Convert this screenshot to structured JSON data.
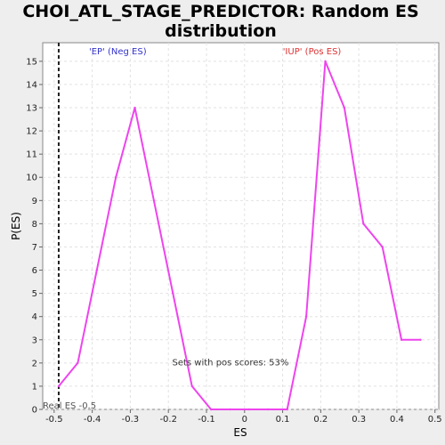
{
  "chart_data": {
    "type": "line",
    "title": "CHOI_ATL_STAGE_PREDICTOR: Random ES distribution",
    "title_lines": [
      "CHOI_ATL_STAGE_PREDICTOR: Random ES",
      "distribution"
    ],
    "xlabel": "ES",
    "ylabel": "P(ES)",
    "xlim": [
      -0.53,
      0.51
    ],
    "ylim": [
      0,
      15.8
    ],
    "x_ticks": [
      -0.5,
      -0.4,
      -0.3,
      -0.2,
      -0.1,
      0.0,
      0.1,
      0.2,
      0.3,
      0.4,
      0.5
    ],
    "x_tick_labels": [
      "-0.5",
      "-0.4",
      "-0.3",
      "-0.2",
      "-0.1",
      "0",
      "0.1",
      "0.2",
      "0.3",
      "0.4",
      "0.5"
    ],
    "y_ticks": [
      0,
      1,
      2,
      3,
      4,
      5,
      6,
      7,
      8,
      9,
      10,
      11,
      12,
      13,
      14,
      15
    ],
    "y_tick_labels": [
      "0",
      "1",
      "2",
      "3",
      "4",
      "5",
      "6",
      "7",
      "8",
      "9",
      "10",
      "11",
      "12",
      "13",
      "14",
      "15"
    ],
    "grid": true,
    "series": [
      {
        "color": "#ee44ee",
        "x": [
          -0.488,
          -0.438,
          -0.388,
          -0.338,
          -0.288,
          -0.238,
          -0.188,
          -0.138,
          -0.088,
          -0.038,
          0.012,
          0.062,
          0.112,
          0.162,
          0.212,
          0.262,
          0.312,
          0.362,
          0.412,
          0.462
        ],
        "y": [
          1,
          2,
          6,
          10,
          13,
          9,
          5,
          1,
          0,
          0,
          0,
          0,
          0,
          4,
          15,
          13,
          8,
          7,
          3,
          3
        ]
      }
    ],
    "real_es": {
      "value": -0.488,
      "label": "Real ES -0.5"
    },
    "annotations": {
      "neg_label": "'EP' (Neg ES)",
      "neg_color": "#3333cc",
      "pos_label": "'IUP' (Pos ES)",
      "pos_color": "#dd3333",
      "pos_scores": "Sets with pos scores: 53%"
    }
  }
}
